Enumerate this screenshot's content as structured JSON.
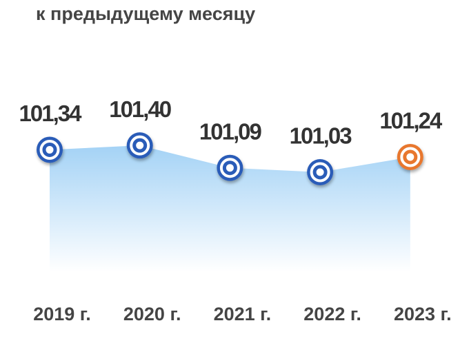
{
  "chart_data": {
    "type": "area",
    "title": "к предыдущему месяцу",
    "categories": [
      "2019 г.",
      "2020 г.",
      "2021 г.",
      "2022 г.",
      "2023 г."
    ],
    "values": [
      101.34,
      101.4,
      101.09,
      101.03,
      101.24
    ],
    "value_labels": [
      "101,34",
      "101,40",
      "101,09",
      "101,03",
      "101,24"
    ],
    "color": "#9fd0f5",
    "point_colors": [
      "#2a5cb8",
      "#2a5cb8",
      "#2a5cb8",
      "#2a5cb8",
      "#e8772e"
    ]
  }
}
